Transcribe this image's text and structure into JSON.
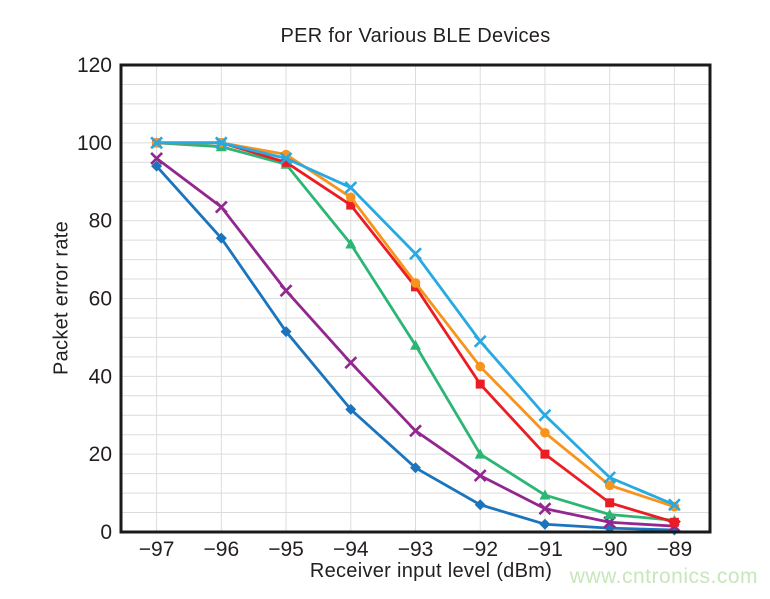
{
  "watermark": {
    "text": "www.cntronics.com",
    "color": "#c7e6bb"
  },
  "style": {
    "background": "#ffffff",
    "frame_color": "#1a1a1a",
    "grid_color": "#dcdcdc",
    "text_color": "#231f20"
  },
  "chart_data": {
    "type": "line",
    "title": "PER for Various BLE Devices",
    "xlabel": "Receiver input level (dBm)",
    "ylabel": "Packet error rate",
    "x": [
      -97,
      -96,
      -95,
      -94,
      -93,
      -92,
      -91,
      -90,
      -89
    ],
    "x_tick_labels": [
      "−97",
      "−96",
      "−95",
      "−94",
      "−93",
      "−92",
      "−91",
      "−90",
      "−89"
    ],
    "y_ticks": [
      0,
      20,
      40,
      60,
      80,
      100,
      120
    ],
    "xlim": [
      -97.55,
      -88.45
    ],
    "ylim": [
      0,
      120
    ],
    "y_minor_step": 5,
    "grid": true,
    "legend_position": "none",
    "series": [
      {
        "name": "blue-diamond",
        "marker": "diamond",
        "color": "#1C75BC",
        "values": [
          94,
          75.5,
          51.5,
          31.5,
          16.5,
          7,
          2,
          1,
          0.5
        ]
      },
      {
        "name": "purple-x",
        "marker": "x",
        "color": "#92278F",
        "values": [
          96,
          83.5,
          62,
          43.5,
          26,
          14.5,
          6,
          2.5,
          1.5
        ]
      },
      {
        "name": "green-triangle",
        "marker": "triangle",
        "color": "#2BB673",
        "values": [
          100,
          99,
          94.5,
          74,
          48,
          20,
          9.5,
          4.5,
          3
        ]
      },
      {
        "name": "red-square",
        "marker": "square",
        "color": "#EC1C24",
        "values": [
          100,
          100,
          95,
          84,
          63,
          38,
          20,
          7.5,
          2.5
        ]
      },
      {
        "name": "orange-circle",
        "marker": "circle",
        "color": "#F7941E",
        "values": [
          100,
          100,
          97,
          86,
          64,
          42.5,
          25.5,
          12,
          6.5
        ]
      },
      {
        "name": "cyan-x",
        "marker": "x",
        "color": "#27AAE1",
        "values": [
          100,
          100,
          96,
          88.5,
          71.5,
          49,
          30,
          14,
          7
        ]
      }
    ]
  }
}
